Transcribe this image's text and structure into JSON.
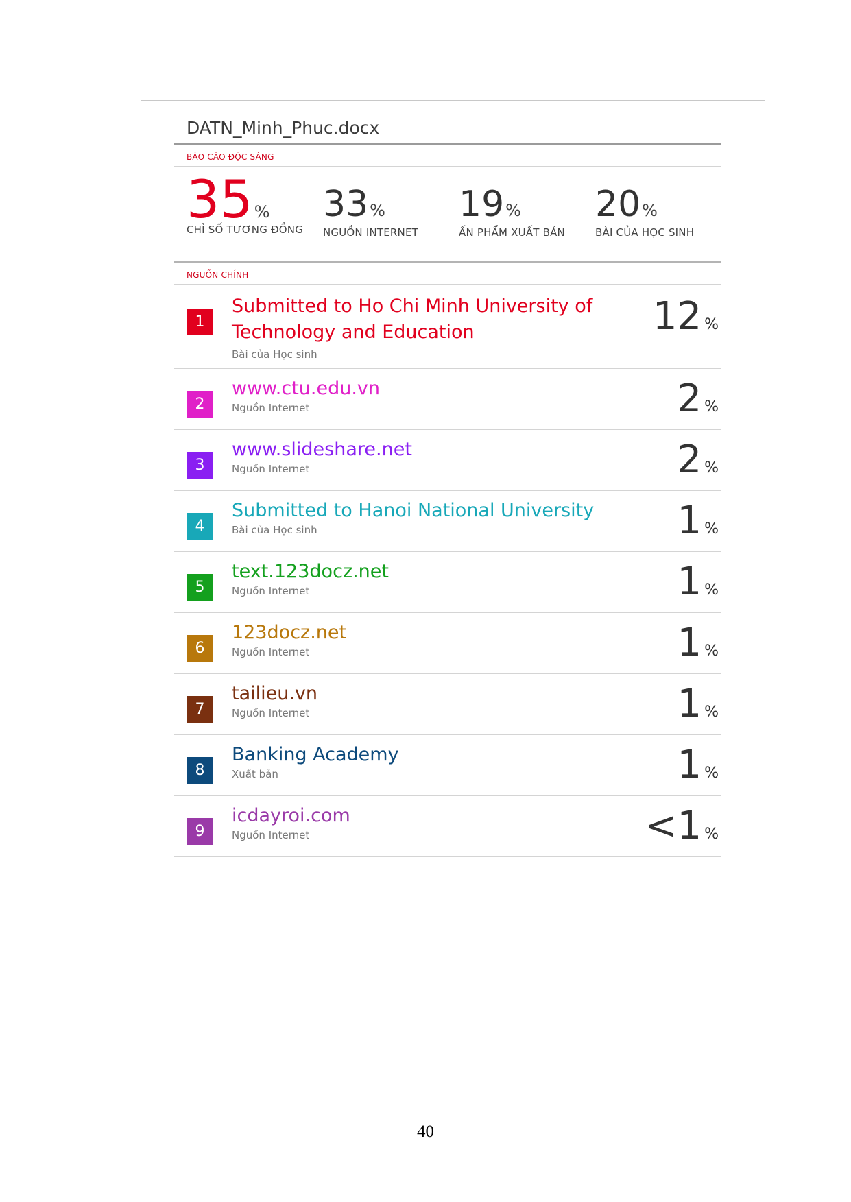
{
  "report": {
    "document_title": "DATN_Minh_Phuc.docx",
    "originality_label": "BÁO CÁO ĐỘC SÁNG",
    "stats": [
      {
        "value": "35",
        "unit": "%",
        "label": "CHỈ SỐ TƯƠNG ĐỒNG"
      },
      {
        "value": "33",
        "unit": "%",
        "label": "NGUỒN INTERNET"
      },
      {
        "value": "19",
        "unit": "%",
        "label": "ẤN PHẨM XUẤT BẢN"
      },
      {
        "value": "20",
        "unit": "%",
        "label": "BÀI CỦA HỌC SINH"
      }
    ],
    "sources_label": "NGUỒN CHÍNH",
    "sources": [
      {
        "rank": "1",
        "name": "Submitted to Ho Chi Minh University of Technology and Education",
        "type": "Bài của Học sinh",
        "percent": "12",
        "unit": "%",
        "color": "#e1001e"
      },
      {
        "rank": "2",
        "name": "www.ctu.edu.vn",
        "type": "Nguồn Internet",
        "percent": "2",
        "unit": "%",
        "color": "#e020c8"
      },
      {
        "rank": "3",
        "name": "www.slideshare.net",
        "type": "Nguồn Internet",
        "percent": "2",
        "unit": "%",
        "color": "#8a1ff2"
      },
      {
        "rank": "4",
        "name": "Submitted to Hanoi National University",
        "type": "Bài của Học sinh",
        "percent": "1",
        "unit": "%",
        "color": "#18a8b8"
      },
      {
        "rank": "5",
        "name": "text.123docz.net",
        "type": "Nguồn Internet",
        "percent": "1",
        "unit": "%",
        "color": "#14a01e"
      },
      {
        "rank": "6",
        "name": "123docz.net",
        "type": "Nguồn Internet",
        "percent": "1",
        "unit": "%",
        "color": "#b8780c"
      },
      {
        "rank": "7",
        "name": "tailieu.vn",
        "type": "Nguồn Internet",
        "percent": "1",
        "unit": "%",
        "color": "#7a3010"
      },
      {
        "rank": "8",
        "name": "Banking Academy",
        "type": "Xuất bản",
        "percent": "1",
        "unit": "%",
        "color": "#0d4a7c"
      },
      {
        "rank": "9",
        "name": "icdayroi.com",
        "type": "Nguồn Internet",
        "percent": "<1",
        "unit": "%",
        "color": "#9a3aa8"
      }
    ]
  },
  "page_number": "40"
}
